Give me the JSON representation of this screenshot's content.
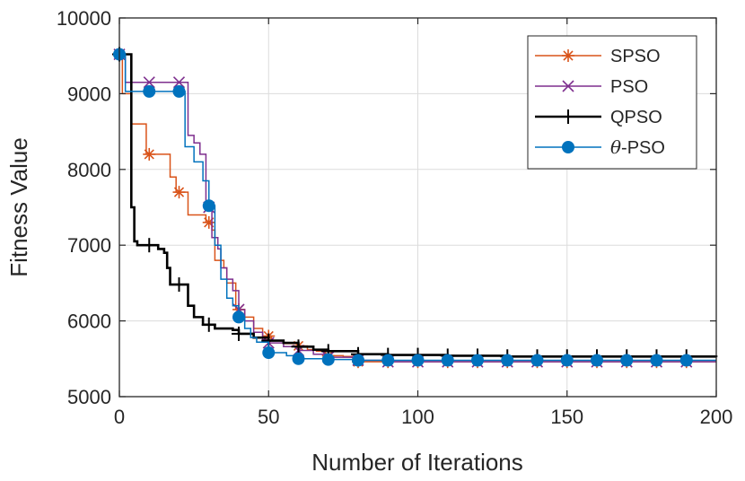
{
  "chart_data": {
    "type": "line",
    "title": "",
    "xlabel": "Number of Iterations",
    "ylabel": "Fitness Value",
    "xlim": [
      0,
      200
    ],
    "ylim": [
      5000,
      10000
    ],
    "xticks": [
      0,
      50,
      100,
      150,
      200
    ],
    "yticks": [
      5000,
      6000,
      7000,
      8000,
      9000,
      10000
    ],
    "xtick_labels": [
      "0",
      "50",
      "100",
      "150",
      "200"
    ],
    "ytick_labels": [
      "5000",
      "6000",
      "7000",
      "8000",
      "9000",
      "10000"
    ],
    "grid": true,
    "legend_position": "top-right",
    "marker_every": 10,
    "series": [
      {
        "name": "SPSO",
        "color": "#D95319",
        "marker": "asterisk",
        "step": [
          [
            0,
            9520
          ],
          [
            1,
            9000
          ],
          [
            4,
            8600
          ],
          [
            8,
            8600
          ],
          [
            9,
            8200
          ],
          [
            16,
            8200
          ],
          [
            17,
            7900
          ],
          [
            19,
            7700
          ],
          [
            23,
            7400
          ],
          [
            27,
            7400
          ],
          [
            29,
            7300
          ],
          [
            31,
            7200
          ],
          [
            32,
            6800
          ],
          [
            35,
            6700
          ],
          [
            36,
            6500
          ],
          [
            39,
            6150
          ],
          [
            42,
            6050
          ],
          [
            45,
            5900
          ],
          [
            48,
            5800
          ],
          [
            51,
            5740
          ],
          [
            55,
            5700
          ],
          [
            60,
            5670
          ],
          [
            63,
            5620
          ],
          [
            66,
            5600
          ],
          [
            70,
            5540
          ],
          [
            75,
            5530
          ],
          [
            78,
            5520
          ],
          [
            80,
            5460
          ],
          [
            200,
            5460
          ]
        ]
      },
      {
        "name": "PSO",
        "color": "#7E2F8E",
        "marker": "x",
        "step": [
          [
            0,
            9520
          ],
          [
            2,
            9150
          ],
          [
            21,
            9150
          ],
          [
            23,
            8450
          ],
          [
            25,
            8350
          ],
          [
            27,
            8200
          ],
          [
            29,
            7500
          ],
          [
            31,
            7100
          ],
          [
            33,
            6950
          ],
          [
            34,
            6700
          ],
          [
            36,
            6550
          ],
          [
            38,
            6400
          ],
          [
            40,
            6150
          ],
          [
            42,
            6000
          ],
          [
            45,
            5850
          ],
          [
            48,
            5750
          ],
          [
            50,
            5710
          ],
          [
            55,
            5660
          ],
          [
            60,
            5610
          ],
          [
            65,
            5560
          ],
          [
            70,
            5520
          ],
          [
            80,
            5480
          ],
          [
            90,
            5460
          ],
          [
            200,
            5460
          ]
        ]
      },
      {
        "name": "QPSO",
        "color": "#000000",
        "marker": "plus",
        "step": [
          [
            0,
            9520
          ],
          [
            3,
            9520
          ],
          [
            4,
            7500
          ],
          [
            5,
            7050
          ],
          [
            6,
            7000
          ],
          [
            13,
            6950
          ],
          [
            15,
            6900
          ],
          [
            16,
            6700
          ],
          [
            17,
            6480
          ],
          [
            21,
            6480
          ],
          [
            23,
            6200
          ],
          [
            25,
            6050
          ],
          [
            28,
            5950
          ],
          [
            30,
            5950
          ],
          [
            32,
            5900
          ],
          [
            38,
            5880
          ],
          [
            40,
            5830
          ],
          [
            45,
            5780
          ],
          [
            50,
            5740
          ],
          [
            55,
            5710
          ],
          [
            60,
            5660
          ],
          [
            65,
            5620
          ],
          [
            70,
            5600
          ],
          [
            80,
            5560
          ],
          [
            90,
            5550
          ],
          [
            110,
            5540
          ],
          [
            130,
            5530
          ],
          [
            200,
            5520
          ]
        ]
      },
      {
        "name": "θ-PSO",
        "legend_var": "θ",
        "legend_suffix": "-PSO",
        "color": "#0072BD",
        "marker": "circle",
        "step": [
          [
            0,
            9520
          ],
          [
            2,
            9030
          ],
          [
            20,
            9030
          ],
          [
            22,
            8300
          ],
          [
            25,
            8100
          ],
          [
            28,
            7850
          ],
          [
            30,
            7520
          ],
          [
            32,
            7000
          ],
          [
            34,
            6550
          ],
          [
            36,
            6300
          ],
          [
            38,
            6200
          ],
          [
            40,
            6050
          ],
          [
            42,
            5900
          ],
          [
            44,
            5780
          ],
          [
            46,
            5720
          ],
          [
            50,
            5580
          ],
          [
            56,
            5540
          ],
          [
            60,
            5500
          ],
          [
            70,
            5490
          ],
          [
            80,
            5480
          ],
          [
            90,
            5480
          ],
          [
            200,
            5480
          ]
        ]
      }
    ]
  }
}
